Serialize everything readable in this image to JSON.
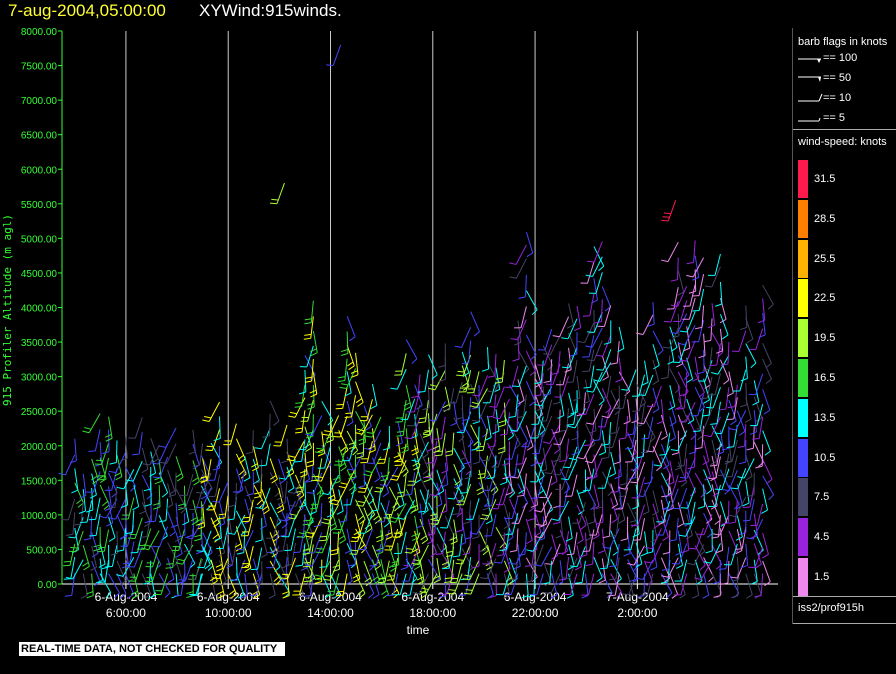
{
  "header": {
    "date": "7-aug-2004,05:00:00",
    "title": "XYWind:915winds."
  },
  "footer": {
    "note": "REAL-TIME DATA, NOT CHECKED FOR QUALITY"
  },
  "legend": {
    "barb_title": "barb flags in knots",
    "barb_flags": [
      "== 100",
      "== 50",
      "== 10",
      "== 5"
    ],
    "speed_title": "wind-speed: knots",
    "speed_bins": [
      {
        "label": "31.5",
        "color": "#ff1a4d"
      },
      {
        "label": "28.5",
        "color": "#ff8000"
      },
      {
        "label": "25.5",
        "color": "#ffb300"
      },
      {
        "label": "22.5",
        "color": "#ffff00"
      },
      {
        "label": "19.5",
        "color": "#aaff33"
      },
      {
        "label": "16.5",
        "color": "#33dd33"
      },
      {
        "label": "13.5",
        "color": "#00ffff"
      },
      {
        "label": "10.5",
        "color": "#4444ff"
      },
      {
        "label": "7.5",
        "color": "#444466"
      },
      {
        "label": "4.5",
        "color": "#9922dd"
      },
      {
        "label": "1.5",
        "color": "#ee88ee"
      }
    ],
    "source": "iss2/prof915h"
  },
  "chart_data": {
    "type": "scatter",
    "ylabel": "915 Profiler Altitude (m agl)",
    "xlabel": "time",
    "ylim": [
      0,
      8000
    ],
    "yticks": [
      "0.00",
      "500.00",
      "1000.00",
      "1500.00",
      "2000.00",
      "2500.00",
      "3000.00",
      "3500.00",
      "4000.00",
      "4500.00",
      "5000.00",
      "5500.00",
      "6000.00",
      "6500.00",
      "7000.00",
      "7500.00",
      "8000.00"
    ],
    "xlim_hours": [
      3.5,
      31.5
    ],
    "x_ticks": [
      {
        "hour": 6,
        "date": "6-Aug-2004",
        "time": "6:00:00"
      },
      {
        "hour": 10,
        "date": "6-Aug-2004",
        "time": "10:00:00"
      },
      {
        "hour": 14,
        "date": "6-Aug-2004",
        "time": "14:00:00"
      },
      {
        "hour": 18,
        "date": "6-Aug-2004",
        "time": "18:00:00"
      },
      {
        "hour": 22,
        "date": "6-Aug-2004",
        "time": "22:00:00"
      },
      {
        "hour": 26,
        "date": "7-Aug-2004",
        "time": "2:00:00"
      }
    ],
    "vertical_gridlines_at_hours": [
      6,
      10,
      14,
      18,
      22,
      26
    ],
    "barb_segments": [
      {
        "x_start_h": 4.0,
        "x_end_h": 9.0,
        "alt_min": 150,
        "alt_max": 2600,
        "speed": [
          7.5,
          10.5,
          13.5,
          16.5
        ]
      },
      {
        "x_start_h": 9.0,
        "x_end_h": 13.0,
        "alt_min": 150,
        "alt_max": 2800,
        "speed": [
          7.5,
          10.5,
          13.5,
          22.5
        ]
      },
      {
        "x_start_h": 13.0,
        "x_end_h": 17.5,
        "alt_min": 150,
        "alt_max": 4200,
        "speed": [
          10.5,
          13.5,
          16.5,
          19.5,
          22.5
        ]
      },
      {
        "x_start_h": 17.5,
        "x_end_h": 21.0,
        "alt_min": 150,
        "alt_max": 4200,
        "speed": [
          4.5,
          7.5,
          10.5,
          13.5,
          19.5
        ]
      },
      {
        "x_start_h": 21.0,
        "x_end_h": 31.0,
        "alt_min": 150,
        "alt_max": 5200,
        "speed": [
          1.5,
          4.5,
          7.5,
          10.5,
          13.5
        ]
      }
    ],
    "isolated_barbs": [
      {
        "hour": 12.2,
        "alt": 5800,
        "speed": 19.5
      },
      {
        "hour": 14.4,
        "alt": 7800,
        "speed": 10.5
      },
      {
        "hour": 27.5,
        "alt": 5550,
        "speed": 31.5
      }
    ]
  }
}
